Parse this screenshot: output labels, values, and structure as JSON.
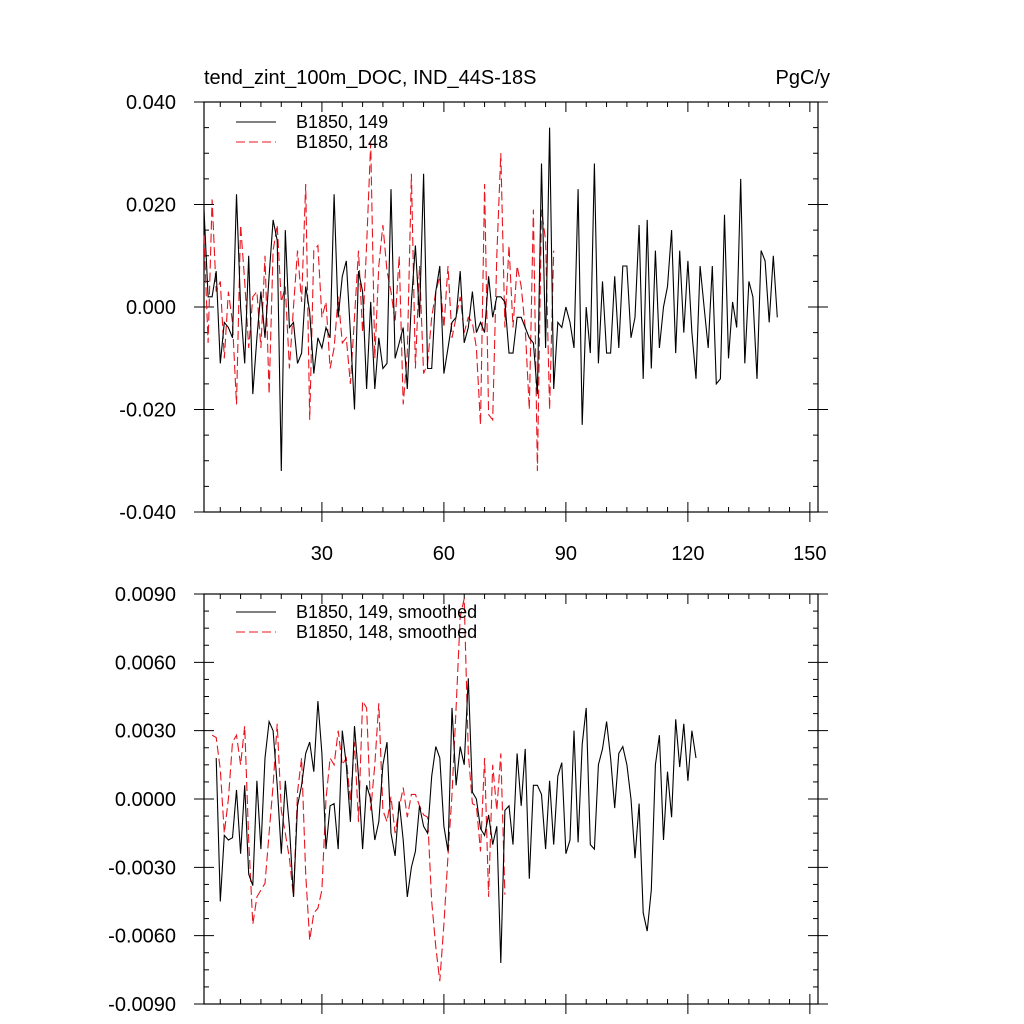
{
  "header": {
    "title": "tend_zint_100m_DOC, IND_44S-18S",
    "units": "PgC/y"
  },
  "colors": {
    "series_149": "#000000",
    "series_148": "#e8141e",
    "axis": "#000000"
  },
  "chart_data": [
    {
      "type": "line",
      "title": "tend_zint_100m_DOC, IND_44S-18S",
      "units_label": "PgC/y",
      "xlim": [
        1,
        152
      ],
      "ylim": [
        -0.04,
        0.04
      ],
      "xticks": [
        30,
        60,
        90,
        120,
        150
      ],
      "xtick_labels": [
        "30",
        "60",
        "90",
        "120",
        "150"
      ],
      "yticks": [
        -0.04,
        -0.02,
        0.0,
        0.02,
        0.04
      ],
      "ytick_labels": [
        "-0.040",
        "-0.020",
        "0.000",
        "0.020",
        "0.040"
      ],
      "legend_position": "top-left",
      "series": [
        {
          "name": "B1850, 149",
          "style": "solid",
          "x_start": 1,
          "values": [
            0.019,
            0.002,
            0.002,
            0.007,
            -0.011,
            -0.003,
            -0.004,
            -0.006,
            0.022,
            0.0,
            -0.011,
            0.01,
            -0.017,
            -0.006,
            0.003,
            -0.006,
            0.006,
            0.017,
            0.013,
            -0.032,
            0.015,
            -0.004,
            -0.003,
            -0.011,
            -0.009,
            0.004,
            -0.001,
            -0.013,
            -0.006,
            -0.008,
            -0.004,
            -0.006,
            0.022,
            -0.002,
            0.006,
            0.009,
            -0.005,
            -0.02,
            0.007,
            0.003,
            -0.016,
            0.001,
            -0.016,
            -0.006,
            -0.012,
            -0.011,
            0.023,
            -0.01,
            -0.007,
            -0.004,
            -0.016,
            0.001,
            0.012,
            -0.002,
            0.026,
            -0.012,
            -0.012,
            0.003,
            0.008,
            -0.013,
            -0.008,
            -0.003,
            -0.002,
            0.007,
            -0.007,
            -0.004,
            0.003,
            -0.005,
            -0.003,
            -0.005,
            0.006,
            -0.002,
            0.002,
            0.002,
            0.001,
            -0.009,
            -0.009,
            -0.002,
            -0.002,
            -0.004,
            -0.006,
            -0.007,
            -0.017,
            0.028,
            -0.008,
            0.035,
            -0.016,
            -0.003,
            -0.004,
            0.0,
            -0.003,
            -0.008,
            0.023,
            -0.023,
            0.0,
            -0.009,
            0.028,
            -0.011,
            0.005,
            -0.009,
            -0.009,
            0.006,
            -0.008,
            0.008,
            0.008,
            -0.006,
            -0.002,
            0.016,
            -0.014,
            0.017,
            -0.012,
            0.011,
            -0.008,
            0.0,
            0.004,
            0.015,
            -0.009,
            0.011,
            -0.005,
            0.009,
            -0.005,
            -0.014,
            0.008,
            0.0,
            -0.008,
            0.008,
            -0.015,
            -0.014,
            0.018,
            -0.01,
            0.001,
            -0.004,
            0.025,
            -0.011,
            0.005,
            0.002,
            -0.014,
            0.011,
            0.009,
            -0.003,
            0.01,
            -0.002
          ],
          "values_note": ""
        },
        {
          "name": "B1850, 148",
          "style": "dashed",
          "x_start": 1,
          "values": [
            0.014,
            -0.007,
            0.021,
            0.003,
            0.005,
            -0.01,
            0.003,
            -0.003,
            -0.019,
            0.016,
            0.005,
            -0.008,
            0.002,
            0.003,
            -0.008,
            0.01,
            -0.017,
            0.011,
            0.016,
            0.001,
            0.004,
            -0.012,
            0.0,
            0.011,
            0.001,
            0.024,
            -0.022,
            0.011,
            0.012,
            -0.002,
            0.001,
            -0.012,
            -0.008,
            0.002,
            -0.007,
            -0.006,
            -0.015,
            -0.002,
            0.011,
            -0.005,
            0.012,
            0.032,
            -0.01,
            0.008,
            0.016,
            0.007,
            0.003,
            -0.003,
            0.01,
            -0.019,
            -0.009,
            0.026,
            -0.012,
            0.008,
            -0.013,
            -0.011,
            -0.002,
            0.003,
            0.006,
            -0.004,
            0.008,
            -0.006,
            -0.002,
            0.002,
            -0.005,
            -0.002,
            -0.003,
            -0.008,
            -0.023,
            0.024,
            -0.021,
            -0.022,
            0.01,
            0.03,
            -0.004,
            0.012,
            -0.004,
            0.008,
            0.004,
            -0.004,
            -0.02,
            0.019,
            -0.032,
            0.019,
            0.013,
            -0.02,
            0.011
          ]
        }
      ]
    },
    {
      "type": "line",
      "xlim": [
        1,
        152
      ],
      "ylim": [
        -0.009,
        0.009
      ],
      "xticks": [
        30,
        60,
        90,
        120,
        150
      ],
      "yticks": [
        -0.009,
        -0.006,
        -0.003,
        0.0,
        0.003,
        0.006,
        0.009
      ],
      "ytick_labels": [
        "-0.0090",
        "-0.0060",
        "-0.0030",
        "0.0000",
        "0.0030",
        "0.0060",
        "0.0090"
      ],
      "legend_position": "top-left",
      "series": [
        {
          "name": "B1850, 149, smoothed",
          "style": "solid",
          "x_start": 4,
          "values": [
            0.0018,
            -0.0045,
            -0.0016,
            -0.0018,
            -0.0017,
            0.0004,
            -0.0024,
            0.0006,
            -0.0033,
            -0.0038,
            0.0008,
            -0.0022,
            0.0018,
            0.0034,
            0.003,
            0.0006,
            -0.0024,
            0.0008,
            -0.0012,
            -0.0043,
            -0.0003,
            0.0006,
            0.002,
            0.0025,
            0.0012,
            0.0043,
            0.002,
            -0.0022,
            -0.0003,
            -0.0002,
            -0.0022,
            0.003,
            0.0015,
            -0.001,
            0.0032,
            0.001,
            -0.0022,
            0.0006,
            0.0,
            -0.0018,
            -0.001,
            0.0015,
            0.0025,
            -0.0015,
            -0.0025,
            -0.0001,
            -0.0018,
            -0.0043,
            -0.003,
            -0.0023,
            -0.0003,
            -0.0012,
            -0.0015,
            0.001,
            0.0023,
            0.0018,
            -0.0012,
            -0.0023,
            0.004,
            0.0006,
            0.0023,
            0.0015,
            0.0053,
            0.0003,
            0.0,
            -0.0013,
            -0.0016,
            -0.0007,
            -0.002,
            -0.0012,
            -0.0072,
            -0.0005,
            -0.0003,
            -0.002,
            0.002,
            -0.0003,
            0.0022,
            -0.0035,
            0.0006,
            0.0006,
            0.0002,
            -0.0022,
            0.0008,
            -0.002,
            0.001,
            0.0016,
            -0.0024,
            -0.0018,
            0.003,
            -0.0019,
            0.0024,
            0.004,
            -0.002,
            -0.0022,
            0.0015,
            0.0022,
            0.0034,
            0.0018,
            -0.0004,
            0.002,
            0.0023,
            0.0015,
            0.0,
            -0.0026,
            -0.0002,
            -0.005,
            -0.0058,
            -0.004,
            0.0015,
            0.0028,
            -0.0018,
            0.0012,
            -0.0008,
            0.0035,
            0.0014,
            0.0033,
            0.0008,
            0.003,
            0.0018
          ]
        },
        {
          "name": "B1850, 148, smoothed",
          "style": "dashed",
          "x_start": 3,
          "values": [
            0.0028,
            0.0027,
            0.0013,
            -0.0015,
            0.0,
            0.0025,
            0.0028,
            0.0015,
            0.0032,
            -0.0018,
            -0.0055,
            -0.0043,
            -0.004,
            -0.0037,
            -0.0015,
            0.0006,
            0.0033,
            -0.0005,
            -0.0015,
            -0.0026,
            -0.0043,
            0.0003,
            0.0018,
            -0.0033,
            -0.0062,
            -0.005,
            -0.0048,
            -0.004,
            0.0,
            0.0018,
            0.0015,
            0.003,
            0.0015,
            0.0018,
            -0.0001,
            0.0025,
            -0.001,
            0.0043,
            0.004,
            -0.0005,
            0.0015,
            0.0042,
            -0.0005,
            -0.001,
            0.0001,
            -0.0015,
            -0.0004,
            0.0005,
            -0.0008,
            0.0002,
            0.0002,
            -0.0003,
            -0.0007,
            -0.0008,
            -0.0045,
            -0.0065,
            -0.008,
            -0.0055,
            -0.0025,
            0.0002,
            0.004,
            0.008,
            0.0088,
            0.002,
            -0.0002,
            -0.0003,
            -0.0023,
            0.0018,
            -0.0043,
            0.0015,
            -0.0005,
            0.002,
            -0.0042
          ]
        }
      ]
    }
  ]
}
